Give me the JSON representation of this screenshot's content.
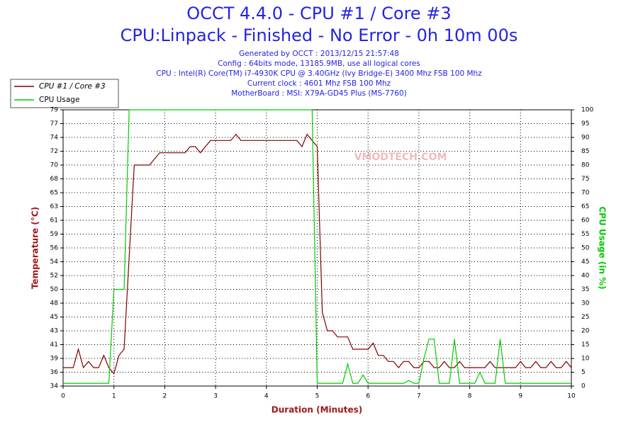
{
  "chart_data": {
    "type": "line",
    "title": "OCCT 4.4.0 - CPU #1 / Core #3",
    "subtitle": "CPU:Linpack - Finished - No Error - 0h 10m 00s",
    "info_lines": [
      "Generated by OCCT : 2013/12/15 21:57:48",
      "Config : 64bits mode, 13185.9MB, use all logical cores",
      "CPU : Intel(R) Core(TM) i7-4930K CPU @ 3.40GHz (Ivy Bridge-E) 3400 Mhz FSB 100 Mhz",
      "Current clock : 4601 Mhz FSB 100 Mhz",
      "MotherBoard : MSI: X79A-GD45 Plus (MS-7760)"
    ],
    "watermark": "VMODTECH.COM",
    "x_label": "Duration (Minutes)",
    "y_label": "Temperature (°C)",
    "y2_label": "CPU Usage (in %)",
    "grid": true,
    "x": [
      0,
      0.1,
      0.2,
      0.3,
      0.4,
      0.5,
      0.6,
      0.7,
      0.8,
      0.9,
      1,
      1.1,
      1.2,
      1.3,
      1.4,
      1.5,
      1.6,
      1.7,
      1.8,
      1.9,
      2,
      2.1,
      2.2,
      2.3,
      2.4,
      2.5,
      2.6,
      2.7,
      2.8,
      2.9,
      3,
      3.1,
      3.2,
      3.3,
      3.4,
      3.5,
      3.6,
      3.7,
      3.8,
      3.9,
      4,
      4.1,
      4.2,
      4.3,
      4.4,
      4.5,
      4.6,
      4.7,
      4.8,
      4.9,
      5,
      5.1,
      5.2,
      5.3,
      5.4,
      5.5,
      5.6,
      5.7,
      5.8,
      5.9,
      6,
      6.1,
      6.2,
      6.3,
      6.4,
      6.5,
      6.6,
      6.7,
      6.8,
      6.9,
      7,
      7.1,
      7.2,
      7.3,
      7.4,
      7.5,
      7.6,
      7.7,
      7.8,
      7.9,
      8,
      8.1,
      8.2,
      8.3,
      8.4,
      8.5,
      8.6,
      8.7,
      8.8,
      8.9,
      9,
      9.1,
      9.2,
      9.3,
      9.4,
      9.5,
      9.6,
      9.7,
      9.8,
      9.9,
      10
    ],
    "series": [
      {
        "name": "CPU #1 / Core #3",
        "color": "#800000",
        "values": [
          37,
          37,
          37,
          40,
          37,
          38,
          37,
          37,
          39,
          37,
          36,
          39,
          40,
          55,
          70,
          70,
          70,
          70,
          71,
          72,
          72,
          72,
          72,
          72,
          72,
          73,
          73,
          72,
          73,
          74,
          74,
          74,
          74,
          74,
          75,
          74,
          74,
          74,
          74,
          74,
          74,
          74,
          74,
          74,
          74,
          74,
          74,
          73,
          75,
          74,
          73,
          46,
          43,
          43,
          42,
          42,
          42,
          40,
          40,
          40,
          40,
          41,
          39,
          39,
          38,
          38,
          37,
          38,
          38,
          37,
          37,
          38,
          38,
          37,
          37,
          38,
          37,
          37,
          38,
          37,
          37,
          37,
          37,
          37,
          38,
          37,
          37,
          37,
          37,
          37,
          38,
          37,
          37,
          38,
          37,
          37,
          38,
          37,
          37,
          38,
          37
        ]
      },
      {
        "name": "CPU Usage",
        "color": "#00cc00",
        "axis": "y2",
        "values": [
          1,
          1,
          1,
          1,
          1,
          1,
          1,
          1,
          1,
          1,
          35,
          35,
          35,
          100,
          100,
          100,
          100,
          100,
          100,
          100,
          100,
          100,
          100,
          100,
          100,
          100,
          100,
          100,
          100,
          100,
          100,
          100,
          100,
          100,
          100,
          100,
          100,
          100,
          100,
          100,
          100,
          100,
          100,
          100,
          100,
          100,
          100,
          100,
          100,
          100,
          1,
          1,
          1,
          1,
          1,
          1,
          8,
          1,
          1,
          4,
          1,
          1,
          1,
          1,
          1,
          1,
          1,
          1,
          2,
          1,
          1,
          10,
          17,
          17,
          1,
          1,
          1,
          17,
          1,
          1,
          1,
          1,
          5,
          1,
          1,
          1,
          17,
          1,
          1,
          1,
          1,
          1,
          1,
          1,
          1,
          1,
          1,
          1,
          1,
          1,
          1
        ]
      }
    ],
    "xlim": [
      0,
      10
    ],
    "xticks": [
      0,
      1,
      2,
      3,
      4,
      5,
      6,
      7,
      8,
      9,
      10
    ],
    "ylim": [
      34,
      79
    ],
    "yticks": [
      34,
      {
        "value": 36.25,
        "label": "36"
      },
      {
        "value": 38.5,
        "label": "39"
      },
      {
        "value": 40.75,
        "label": "41"
      },
      43,
      {
        "value": 45.25,
        "label": "45"
      },
      {
        "value": 47.5,
        "label": "48"
      },
      {
        "value": 49.75,
        "label": "50"
      },
      52,
      {
        "value": 54.25,
        "label": "54"
      },
      {
        "value": 56.5,
        "label": "56"
      },
      {
        "value": 58.75,
        "label": "59"
      },
      61,
      {
        "value": 63.25,
        "label": "63"
      },
      {
        "value": 65.5,
        "label": "65"
      },
      {
        "value": 67.75,
        "label": "68"
      },
      70,
      {
        "value": 72.25,
        "label": "72"
      },
      {
        "value": 74.5,
        "label": "74"
      },
      {
        "value": 76.75,
        "label": "77"
      },
      79
    ],
    "y2lim": [
      0,
      100
    ],
    "y2ticks": [
      0,
      5,
      10,
      15,
      20,
      25,
      30,
      35,
      40,
      45,
      50,
      55,
      60,
      65,
      70,
      75,
      80,
      85,
      90,
      95,
      100
    ]
  }
}
